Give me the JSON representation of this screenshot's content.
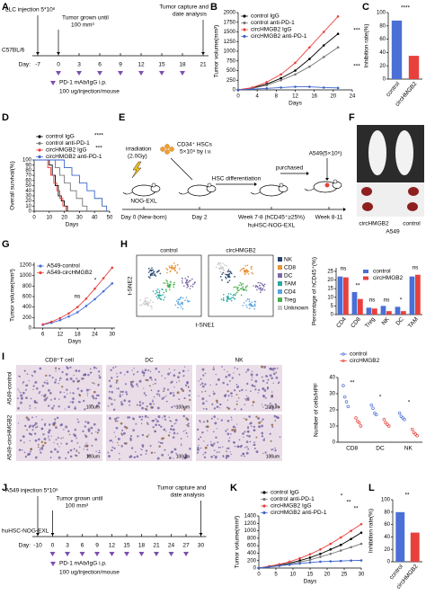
{
  "panel_labels": [
    "A",
    "B",
    "C",
    "D",
    "E",
    "F",
    "G",
    "H",
    "I",
    "J",
    "K",
    "L"
  ],
  "timeline_a": {
    "injection": "LLC injection 5*10⁶",
    "grown": [
      "Tumor grown until",
      "100 mm³"
    ],
    "capture": [
      "Tumor capture and",
      "date analysis"
    ],
    "strain": "C57BL/6",
    "day_label": "Day:",
    "days": [
      -7,
      0,
      3,
      6,
      9,
      12,
      15,
      18,
      21
    ],
    "treatment": "PD-1 mAb/IgG i.p.",
    "dose": "100 ug/injection/mouse"
  },
  "timeline_j": {
    "injection": "A549 injection 5*10⁶",
    "grown": [
      "Tumor grown until",
      "100 mm³"
    ],
    "capture": [
      "Tumor capture and",
      "date analysis"
    ],
    "strain": "huHSC-NOG-EXL",
    "day_label": "Day:",
    "days": [
      -10,
      0,
      3,
      6,
      9,
      12,
      15,
      18,
      21,
      24,
      27,
      30
    ],
    "treatment": "PD-1 mAb/IgG i.p.",
    "dose": "100 ug/injection/mouse"
  },
  "diagram_e": {
    "irradiation": [
      "irradiation",
      "(2.0Gy)"
    ],
    "strain": "NOG-EXL",
    "hsc": [
      "CD34⁺ HSCs",
      "5×10⁵ by i.v."
    ],
    "differentiation": "HSC differentiation",
    "purchased": "purchased",
    "a549": "A549(5×10⁶)",
    "day0": "Day 0 (New-born)",
    "day2": "Day 2",
    "week78": [
      "Week 7-8 (hCD45⁺≥25%)",
      "huHSC-NOG-EXL"
    ],
    "week811": "Week 8-11"
  },
  "photo_f": {
    "groups": [
      "circHMGB2",
      "control"
    ],
    "cell_line": "A549"
  },
  "tsne_h": {
    "titles": [
      "control",
      "circHMGB2"
    ],
    "x_label": "t-SNE1",
    "y_label": "t-SNE2",
    "clusters": [
      {
        "name": "NK",
        "color": "#26456e"
      },
      {
        "name": "CD8",
        "color": "#e8923a"
      },
      {
        "name": "DC",
        "color": "#7b6aa8"
      },
      {
        "name": "TAM",
        "color": "#27a9a0"
      },
      {
        "name": "CD4",
        "color": "#5aa3e0"
      },
      {
        "name": "Treg",
        "color": "#4caf50"
      },
      {
        "name": "Unknown",
        "color": "#c8c8c8"
      }
    ]
  },
  "images_i": {
    "columns": [
      "CD8⁺T cell",
      "DC",
      "NK"
    ],
    "rows": [
      "A549-control",
      "A549-circHMGB2"
    ],
    "scale": "100um"
  },
  "chart_data": [
    {
      "type": "line",
      "ylabel": "Tumor volume(mm³)",
      "xlabel": "Days",
      "x": [
        0,
        3,
        6,
        9,
        12,
        15,
        18,
        21
      ],
      "xlim": [
        0,
        24
      ],
      "xticks": [
        0,
        4,
        8,
        12,
        16,
        20,
        24
      ],
      "ylim": [
        0,
        2000
      ],
      "yticks": [
        0,
        250,
        500,
        750,
        1000,
        1250,
        1500,
        1750,
        2000
      ],
      "legend": "top-left",
      "series": [
        {
          "name": "control IgG",
          "color": "#000000",
          "values": [
            0,
            50,
            150,
            300,
            500,
            800,
            1150,
            1450
          ]
        },
        {
          "name": "control anti-PD-1",
          "color": "#777777",
          "values": [
            0,
            40,
            120,
            250,
            400,
            600,
            850,
            1100
          ]
        },
        {
          "name": "circHMGB2 IgG",
          "color": "#e8413c",
          "values": [
            0,
            60,
            200,
            400,
            700,
            1100,
            1500,
            1900
          ]
        },
        {
          "name": "circHMGB2 anti-PD-1",
          "color": "#3b63c9",
          "values": [
            0,
            20,
            40,
            60,
            80,
            80,
            60,
            50
          ]
        }
      ],
      "annotations": [
        "***",
        "***"
      ]
    },
    {
      "type": "bar",
      "ylabel": "Inhibition rate(%)",
      "categories": [
        "control",
        "circHMGB2"
      ],
      "values": [
        88,
        35
      ],
      "colors": [
        "#4a6fd6",
        "#e8413c"
      ],
      "ylim": [
        0,
        100
      ],
      "yticks": [
        0,
        20,
        40,
        60,
        80,
        100
      ],
      "annotations": [
        "****"
      ]
    },
    {
      "type": "step",
      "ylabel": "Overall survival(%)",
      "xlabel": "Days",
      "xlim": [
        0,
        50
      ],
      "xticks": [
        0,
        10,
        20,
        30,
        40,
        50
      ],
      "ylim": [
        0,
        100
      ],
      "yticks": [
        0,
        10,
        20,
        30,
        40,
        50,
        60,
        70,
        80,
        90,
        100
      ],
      "legend": "above",
      "series": [
        {
          "name": "control IgG",
          "color": "#000000",
          "x": [
            0,
            10,
            12,
            14,
            16,
            18,
            20,
            22
          ],
          "values": [
            100,
            90,
            70,
            50,
            30,
            20,
            10,
            0
          ]
        },
        {
          "name": "control anti-PD-1",
          "color": "#777777",
          "x": [
            0,
            14,
            17,
            20,
            24,
            28,
            32,
            35
          ],
          "values": [
            100,
            85,
            70,
            55,
            40,
            25,
            10,
            0
          ]
        },
        {
          "name": "circHMGB2 IgG",
          "color": "#e8413c",
          "x": [
            0,
            9,
            11,
            13,
            15,
            17,
            19,
            21
          ],
          "values": [
            100,
            85,
            70,
            55,
            40,
            25,
            10,
            0
          ]
        },
        {
          "name": "circHMGB2 anti-PD-1",
          "color": "#3b63c9",
          "x": [
            0,
            20,
            25,
            30,
            35,
            40,
            45,
            48
          ],
          "values": [
            100,
            85,
            70,
            55,
            40,
            25,
            10,
            0
          ]
        }
      ],
      "annotations": [
        "****",
        "***"
      ]
    },
    {
      "type": "line",
      "ylabel": "Tumor volume(mm³)",
      "xlabel": "Days",
      "x": [
        6,
        9,
        12,
        15,
        18,
        21,
        24,
        27,
        30
      ],
      "xlim": [
        3,
        31
      ],
      "xticks": [
        6,
        12,
        18,
        24,
        30
      ],
      "ylim": [
        0,
        1250
      ],
      "yticks": [
        0,
        200,
        400,
        600,
        800,
        1000,
        1200
      ],
      "legend": "top-left",
      "series": [
        {
          "name": "A549-control",
          "color": "#4a6fd6",
          "values": [
            60,
            100,
            150,
            220,
            300,
            420,
            550,
            700,
            850
          ]
        },
        {
          "name": "A549-circHMGB2",
          "color": "#e8413c",
          "values": [
            70,
            120,
            190,
            280,
            400,
            560,
            750,
            950,
            1150
          ]
        }
      ],
      "annotations": [
        "ns",
        "*"
      ]
    },
    {
      "type": "bar",
      "ylabel": "Percentage of hCD45⁺(%)",
      "categories": [
        "CD4",
        "CD8",
        "Treg",
        "NK",
        "DC",
        "TAM"
      ],
      "ylim": [
        0,
        27
      ],
      "yticks": [
        0,
        5,
        10,
        15,
        20,
        25
      ],
      "legend": "top-center",
      "series": [
        {
          "name": "control",
          "color": "#4a6fd6",
          "values": [
            22,
            13,
            4,
            5,
            4.5,
            22
          ]
        },
        {
          "name": "circHMGB2",
          "color": "#e8413c",
          "values": [
            21.5,
            9,
            3.5,
            2,
            2,
            23
          ]
        }
      ],
      "annotations": [
        "ns",
        "**",
        "ns",
        "ns",
        "*",
        "ns"
      ]
    },
    {
      "type": "dot",
      "ylabel": "Number of cells/HPF",
      "categories": [
        "CD8",
        "DC",
        "NK"
      ],
      "ylim": [
        0,
        40
      ],
      "yticks": [
        0,
        10,
        20,
        30,
        40
      ],
      "legend": "above",
      "series": [
        {
          "name": "control",
          "color": "#4a6fd6",
          "values": [
            [
              35,
              28,
              25,
              22
            ],
            [
              23,
              21,
              18,
              17
            ],
            [
              18,
              16,
              15,
              14
            ]
          ]
        },
        {
          "name": "circHMGB2",
          "color": "#e8413c",
          "values": [
            [
              15,
              13,
              12,
              10
            ],
            [
              14,
              12,
              11,
              10
            ],
            [
              8,
              6,
              5,
              4
            ]
          ]
        }
      ],
      "annotations": [
        "**",
        "*",
        "*"
      ]
    },
    {
      "type": "line",
      "ylabel": "Tumor volume(mm³)",
      "xlabel": "Days",
      "x": [
        0,
        3,
        6,
        9,
        12,
        15,
        18,
        21,
        24,
        27,
        30
      ],
      "xlim": [
        0,
        30
      ],
      "xticks": [
        0,
        5,
        10,
        15,
        20,
        25,
        30
      ],
      "ylim": [
        0,
        1400
      ],
      "yticks": [
        0,
        200,
        400,
        600,
        800,
        1000,
        1200,
        1400
      ],
      "legend": "above",
      "series": [
        {
          "name": "control IgG",
          "color": "#000000",
          "values": [
            0,
            40,
            80,
            130,
            200,
            280,
            380,
            500,
            620,
            780,
            950
          ]
        },
        {
          "name": "control anti-PD-1",
          "color": "#777777",
          "values": [
            0,
            35,
            70,
            110,
            160,
            220,
            300,
            380,
            470,
            560,
            650
          ]
        },
        {
          "name": "circHMGB2 IgG",
          "color": "#e8413c",
          "values": [
            0,
            50,
            100,
            170,
            260,
            370,
            500,
            650,
            820,
            1000,
            1180
          ]
        },
        {
          "name": "circHMGB2 anti-PD-1",
          "color": "#3b63c9",
          "values": [
            0,
            30,
            60,
            90,
            120,
            150,
            170,
            180,
            190,
            200,
            205
          ]
        }
      ],
      "annotations": [
        "*",
        "**",
        "**"
      ]
    },
    {
      "type": "bar",
      "ylabel": "Inhibition rate(%)",
      "categories": [
        "control",
        "circHMGB2"
      ],
      "values": [
        80,
        47
      ],
      "colors": [
        "#4a6fd6",
        "#e8413c"
      ],
      "ylim": [
        0,
        100
      ],
      "yticks": [
        0,
        20,
        40,
        60,
        80,
        100
      ],
      "annotations": [
        "**"
      ]
    }
  ]
}
